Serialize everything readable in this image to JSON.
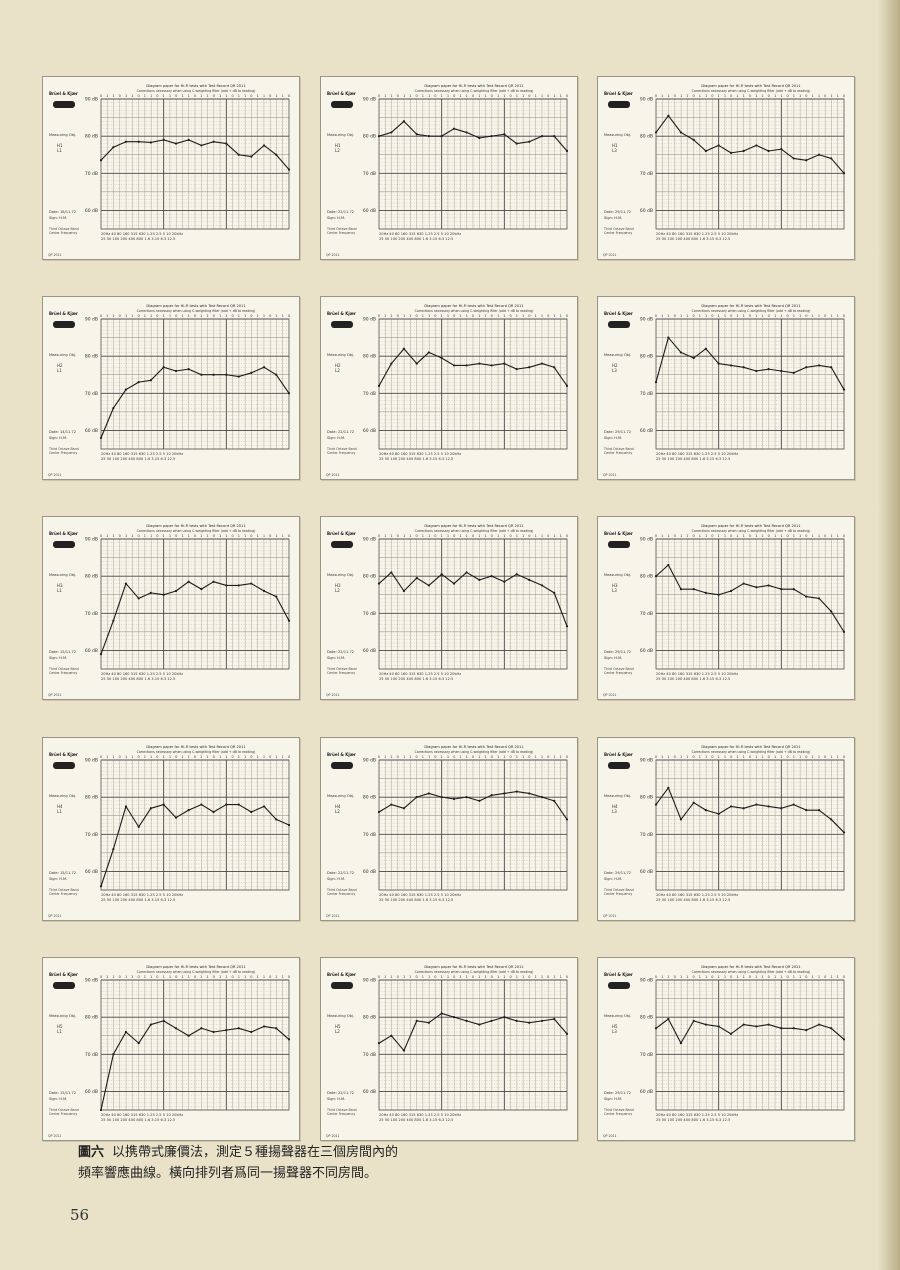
{
  "caption": {
    "label": "圖六",
    "line1": "以携帶式廉價法，測定５種揚聲器在三個房間內的",
    "line2": "頻率響應曲線。橫向排列者爲同一揚聲器不同房間。"
  },
  "page_number": "56",
  "card_template": {
    "brand": "Brüel & Kjær",
    "title": "Diagram paper for Hi-Fi tests with Test Record QR 2011",
    "subtitle": "Corrections necessary when using C-weighting filter (add + dB to reading)",
    "measuring": "Measuring Obj.",
    "band": "Third Octave Band\nCenter Frequency",
    "code": "QP 2011",
    "ticks_top": "20Hz  40  80  160  315  630  1.25  2.5  5  10  20kHz",
    "ticks_bottom": "25  50  100  200  400  800  1.6  3.15  6.3  12.5",
    "sign": "Sign: H.M."
  },
  "chart_data": [
    {
      "type": "line",
      "mic": "H1 L1",
      "date": "Date: 18/11.72",
      "x": [
        20,
        31.5,
        50,
        80,
        125,
        200,
        315,
        500,
        800,
        1250,
        2000,
        3150,
        5000,
        8000,
        12500,
        20000
      ],
      "y": [
        73.5,
        77,
        78.5,
        78.5,
        78.3,
        79,
        78,
        79,
        77.5,
        78.5,
        78,
        75,
        74.5,
        77.5,
        75,
        71
      ],
      "ylim": [
        55,
        90
      ],
      "xlim": [
        20,
        20000
      ],
      "scale": "log"
    },
    {
      "type": "line",
      "mic": "H1 L2",
      "date": "Date: 22/11.72",
      "x": [
        20,
        31.5,
        50,
        80,
        125,
        200,
        315,
        500,
        800,
        1250,
        2000,
        3150,
        5000,
        8000,
        12500,
        20000
      ],
      "y": [
        80,
        81,
        84,
        80.5,
        80,
        80,
        82,
        81,
        79.5,
        80,
        80.5,
        78,
        78.5,
        80,
        80,
        76
      ],
      "ylim": [
        55,
        90
      ],
      "xlim": [
        20,
        20000
      ],
      "scale": "log"
    },
    {
      "type": "line",
      "mic": "H1 L3",
      "date": "Date: 29/11.72",
      "x": [
        20,
        31.5,
        50,
        80,
        125,
        200,
        315,
        500,
        800,
        1250,
        2000,
        3150,
        5000,
        8000,
        12500,
        20000
      ],
      "y": [
        81,
        85.5,
        81,
        79,
        76,
        77.5,
        75.5,
        76,
        77.5,
        76,
        76.5,
        74,
        73.5,
        75,
        74,
        70
      ],
      "ylim": [
        55,
        90
      ],
      "xlim": [
        20,
        20000
      ],
      "scale": "log"
    },
    {
      "type": "line",
      "mic": "H2 L1",
      "date": "Date: 14/11.72",
      "x": [
        20,
        31.5,
        50,
        80,
        125,
        200,
        315,
        500,
        800,
        1250,
        2000,
        3150,
        5000,
        8000,
        12500,
        20000
      ],
      "y": [
        58,
        66,
        71,
        73,
        73.5,
        77,
        76,
        76.5,
        75,
        75,
        75,
        74.5,
        75.5,
        77,
        75,
        70
      ],
      "ylim": [
        55,
        90
      ],
      "xlim": [
        20,
        20000
      ],
      "scale": "log"
    },
    {
      "type": "line",
      "mic": "H2 L2",
      "date": "Date: 22/11.72",
      "x": [
        20,
        31.5,
        50,
        80,
        125,
        200,
        315,
        500,
        800,
        1250,
        2000,
        3150,
        5000,
        8000,
        12500,
        20000
      ],
      "y": [
        72,
        78,
        82,
        78,
        81,
        79.5,
        77.5,
        77.5,
        78,
        77.5,
        78,
        76.5,
        77,
        78,
        77,
        72
      ],
      "ylim": [
        55,
        90
      ],
      "xlim": [
        20,
        20000
      ],
      "scale": "log"
    },
    {
      "type": "line",
      "mic": "H2 L3",
      "date": "Date: 29/11.72",
      "x": [
        20,
        31.5,
        50,
        80,
        125,
        200,
        315,
        500,
        800,
        1250,
        2000,
        3150,
        5000,
        8000,
        12500,
        20000
      ],
      "y": [
        73,
        85,
        81,
        79.5,
        82,
        78,
        77.5,
        77,
        76,
        76.5,
        76,
        75.5,
        77,
        77.5,
        77,
        71
      ],
      "ylim": [
        55,
        90
      ],
      "xlim": [
        20,
        20000
      ],
      "scale": "log"
    },
    {
      "type": "line",
      "mic": "H3 L1",
      "date": "Date: 15/11.72",
      "x": [
        20,
        31.5,
        50,
        80,
        125,
        200,
        315,
        500,
        800,
        1250,
        2000,
        3150,
        5000,
        8000,
        12500,
        20000
      ],
      "y": [
        59,
        68,
        78,
        74,
        75.5,
        75,
        76,
        78.5,
        76.5,
        78.5,
        77.5,
        77.5,
        78,
        76,
        74.5,
        68
      ],
      "ylim": [
        55,
        90
      ],
      "xlim": [
        20,
        20000
      ],
      "scale": "log"
    },
    {
      "type": "line",
      "mic": "H3 L2",
      "date": "Date: 22/11.72",
      "x": [
        20,
        31.5,
        50,
        80,
        125,
        200,
        315,
        500,
        800,
        1250,
        2000,
        3150,
        5000,
        8000,
        12500,
        20000
      ],
      "y": [
        78,
        81,
        76,
        79.5,
        77.5,
        80.5,
        78,
        81,
        79,
        80,
        78.5,
        80.5,
        79,
        77.5,
        75.5,
        66.5
      ],
      "ylim": [
        55,
        90
      ],
      "xlim": [
        20,
        20000
      ],
      "scale": "log"
    },
    {
      "type": "line",
      "mic": "H3 L3",
      "date": "Date: 29/11.72",
      "x": [
        20,
        31.5,
        50,
        80,
        125,
        200,
        315,
        500,
        800,
        1250,
        2000,
        3150,
        5000,
        8000,
        12500,
        20000
      ],
      "y": [
        80,
        83,
        76.5,
        76.5,
        75.5,
        75,
        76,
        78,
        77,
        77.5,
        76.5,
        76.5,
        74.5,
        74,
        70.5,
        65
      ],
      "ylim": [
        55,
        90
      ],
      "xlim": [
        20,
        20000
      ],
      "scale": "log"
    },
    {
      "type": "line",
      "mic": "H4 L1",
      "date": "Date: 15/11.72",
      "x": [
        20,
        31.5,
        50,
        80,
        125,
        200,
        315,
        500,
        800,
        1250,
        2000,
        3150,
        5000,
        8000,
        12500,
        20000
      ],
      "y": [
        56,
        66,
        77.5,
        72,
        77,
        78,
        74.5,
        76.5,
        78,
        76,
        78,
        78,
        76,
        77.5,
        74,
        72.5
      ],
      "ylim": [
        55,
        90
      ],
      "xlim": [
        20,
        20000
      ],
      "scale": "log"
    },
    {
      "type": "line",
      "mic": "H4 L2",
      "date": "Date: 22/11.72",
      "x": [
        20,
        31.5,
        50,
        80,
        125,
        200,
        315,
        500,
        800,
        1250,
        2000,
        3150,
        5000,
        8000,
        12500,
        20000
      ],
      "y": [
        76,
        78,
        77,
        80,
        81,
        80,
        79.5,
        80,
        79,
        80.5,
        81,
        81.5,
        81,
        80,
        79,
        74
      ],
      "ylim": [
        55,
        90
      ],
      "xlim": [
        20,
        20000
      ],
      "scale": "log"
    },
    {
      "type": "line",
      "mic": "H4 L3",
      "date": "Date: 29/11.72",
      "x": [
        20,
        31.5,
        50,
        80,
        125,
        200,
        315,
        500,
        800,
        1250,
        2000,
        3150,
        5000,
        8000,
        12500,
        20000
      ],
      "y": [
        78,
        82.5,
        74,
        78.5,
        76.5,
        75.5,
        77.5,
        77,
        78,
        77.5,
        77,
        78,
        76.5,
        76.5,
        74,
        70.5
      ],
      "ylim": [
        55,
        90
      ],
      "xlim": [
        20,
        20000
      ],
      "scale": "log"
    },
    {
      "type": "line",
      "mic": "H5 L1",
      "date": "Date: 15/11.72",
      "x": [
        20,
        31.5,
        50,
        80,
        125,
        200,
        315,
        500,
        800,
        1250,
        2000,
        3150,
        5000,
        8000,
        12500,
        20000
      ],
      "y": [
        55,
        70,
        76,
        73,
        78,
        79,
        77,
        75,
        77,
        76,
        76.5,
        77,
        76,
        77.5,
        77,
        74
      ],
      "ylim": [
        55,
        90
      ],
      "xlim": [
        20,
        20000
      ],
      "scale": "log"
    },
    {
      "type": "line",
      "mic": "H5 L2",
      "date": "Date: 22/11.72",
      "x": [
        20,
        31.5,
        50,
        80,
        125,
        200,
        315,
        500,
        800,
        1250,
        2000,
        3150,
        5000,
        8000,
        12500,
        20000
      ],
      "y": [
        73,
        75,
        71,
        79,
        78.5,
        81,
        80,
        79,
        78,
        79,
        80,
        79,
        78.5,
        79,
        79.5,
        75.5
      ],
      "ylim": [
        55,
        90
      ],
      "xlim": [
        20,
        20000
      ],
      "scale": "log"
    },
    {
      "type": "line",
      "mic": "H5 L3",
      "date": "Date: 29/11.72",
      "x": [
        20,
        31.5,
        50,
        80,
        125,
        200,
        315,
        500,
        800,
        1250,
        2000,
        3150,
        5000,
        8000,
        12500,
        20000
      ],
      "y": [
        77,
        79.5,
        73,
        79,
        78,
        77.5,
        75.5,
        78,
        77.5,
        78,
        77,
        77,
        76.5,
        78,
        77,
        74
      ],
      "ylim": [
        55,
        90
      ],
      "xlim": [
        20,
        20000
      ],
      "scale": "log"
    }
  ]
}
